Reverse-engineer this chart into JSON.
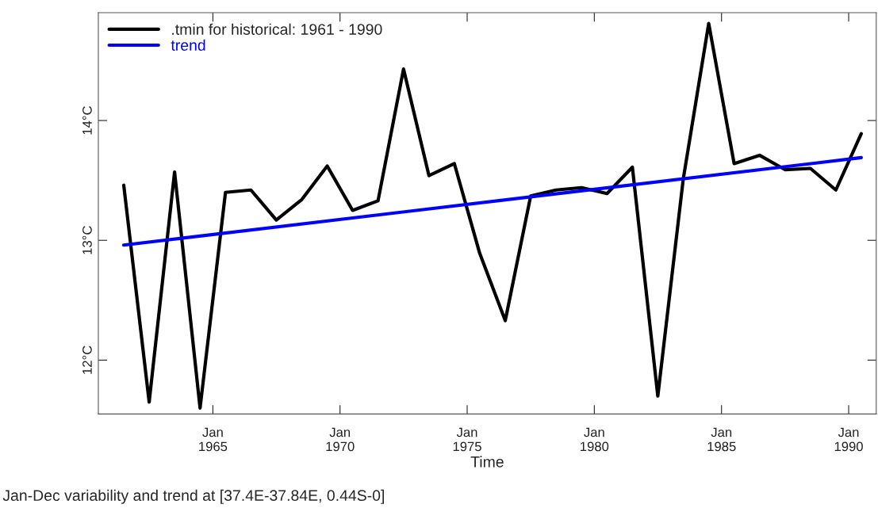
{
  "chart_data": {
    "type": "line",
    "xlabel": "Time",
    "annotations": [
      "Jan-Dec variability and trend at [37.4E-37.84E, 0.44S-0]"
    ],
    "x": [
      "1961-07",
      "1962-07",
      "1963-07",
      "1964-07",
      "1965-07",
      "1966-07",
      "1967-07",
      "1968-07",
      "1969-07",
      "1970-07",
      "1971-07",
      "1972-07",
      "1973-07",
      "1974-07",
      "1975-07",
      "1976-07",
      "1977-07",
      "1978-07",
      "1979-07",
      "1980-07",
      "1981-07",
      "1982-07",
      "1983-07",
      "1984-07",
      "1985-07",
      "1986-07",
      "1987-07",
      "1988-07",
      "1989-07",
      "1990-07"
    ],
    "series": [
      {
        "name": ".tmin for historical: 1961 - 1990",
        "color": "#000000",
        "values": [
          13.46,
          11.65,
          13.57,
          11.6,
          13.4,
          13.42,
          13.17,
          13.34,
          13.62,
          13.25,
          13.33,
          14.43,
          13.54,
          13.64,
          12.89,
          12.33,
          13.37,
          13.42,
          13.44,
          13.39,
          13.61,
          11.7,
          13.51,
          14.81,
          13.64,
          13.71,
          13.59,
          13.6,
          13.42,
          13.89
        ]
      },
      {
        "name": "trend",
        "color": "#0000ff",
        "x": [
          "1961-07",
          "1990-07"
        ],
        "values": [
          12.96,
          13.69
        ]
      }
    ],
    "xlim": [
      "1960-07",
      "1991-02"
    ],
    "xticks": [
      {
        "value": "1965-01",
        "label": "Jan\n1965"
      },
      {
        "value": "1970-01",
        "label": "Jan\n1970"
      },
      {
        "value": "1975-01",
        "label": "Jan\n1975"
      },
      {
        "value": "1980-01",
        "label": "Jan\n1980"
      },
      {
        "value": "1985-01",
        "label": "Jan\n1985"
      },
      {
        "value": "1990-01",
        "label": "Jan\n1990"
      }
    ],
    "ylim": [
      11.55,
      14.9
    ],
    "yticks": [
      {
        "value": 12,
        "label": "12°C"
      },
      {
        "value": 13,
        "label": "13°C"
      },
      {
        "value": 14,
        "label": "14°C"
      }
    ],
    "grid": false,
    "legend": "top left",
    "marker": "none",
    "line_style": "solid"
  }
}
